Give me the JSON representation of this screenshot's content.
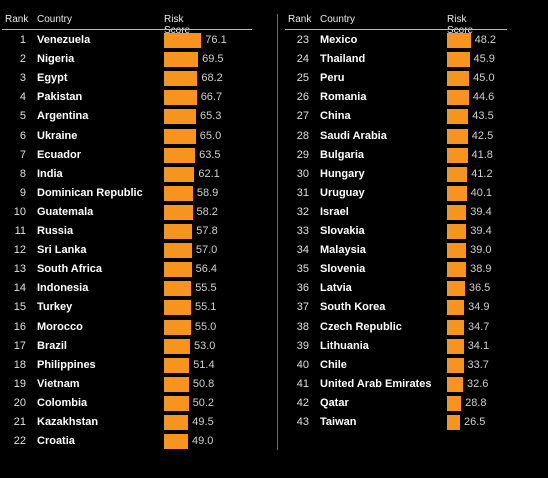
{
  "headers": {
    "rank": "Rank",
    "country": "Country",
    "score": "Risk Score"
  },
  "chart_data": {
    "type": "bar",
    "orientation": "horizontal",
    "title": "",
    "series": [
      {
        "name": "",
        "values": [
          76.1,
          69.5,
          68.2,
          66.7,
          65.3,
          65.0,
          63.5,
          62.1,
          58.9,
          58.2,
          57.8,
          57.0,
          56.4,
          55.5,
          55.1,
          55.0,
          53.0,
          51.4,
          50.8,
          50.2,
          49.5,
          49.0,
          48.2,
          45.9,
          45.0,
          44.6,
          43.5,
          42.5,
          41.8,
          41.2,
          40.1,
          39.4,
          39.4,
          39.0,
          38.9,
          36.5,
          34.9,
          34.7,
          34.1,
          33.7,
          32.6,
          28.8,
          26.5
        ]
      }
    ],
    "ranks": [
      1,
      2,
      3,
      4,
      5,
      6,
      7,
      8,
      9,
      10,
      11,
      12,
      13,
      14,
      15,
      16,
      17,
      18,
      19,
      20,
      21,
      22,
      23,
      24,
      25,
      26,
      27,
      28,
      29,
      30,
      31,
      32,
      33,
      34,
      35,
      36,
      37,
      38,
      39,
      40,
      41,
      42,
      43
    ],
    "categories": [
      "Venezuela",
      "Nigeria",
      "Egypt",
      "Pakistan",
      "Argentina",
      "Ukraine",
      "Ecuador",
      "India",
      "Dominican Republic",
      "Guatemala",
      "Russia",
      "Sri Lanka",
      "South Africa",
      "Indonesia",
      "Turkey",
      "Morocco",
      "Brazil",
      "Philippines",
      "Vietnam",
      "Colombia",
      "Kazakhstan",
      "Croatia",
      "Mexico",
      "Thailand",
      "Peru",
      "Romania",
      "China",
      "Saudi Arabia",
      "Bulgaria",
      "Hungary",
      "Uruguay",
      "Israel",
      "Slovakia",
      "Malaysia",
      "Slovenia",
      "Latvia",
      "South Korea",
      "Czech Republic",
      "Lithuania",
      "Chile",
      "United Arab Emirates",
      "Qatar",
      "Taiwan"
    ],
    "value_format": "0.0",
    "bar_color": "#f7941d",
    "grid": false
  }
}
